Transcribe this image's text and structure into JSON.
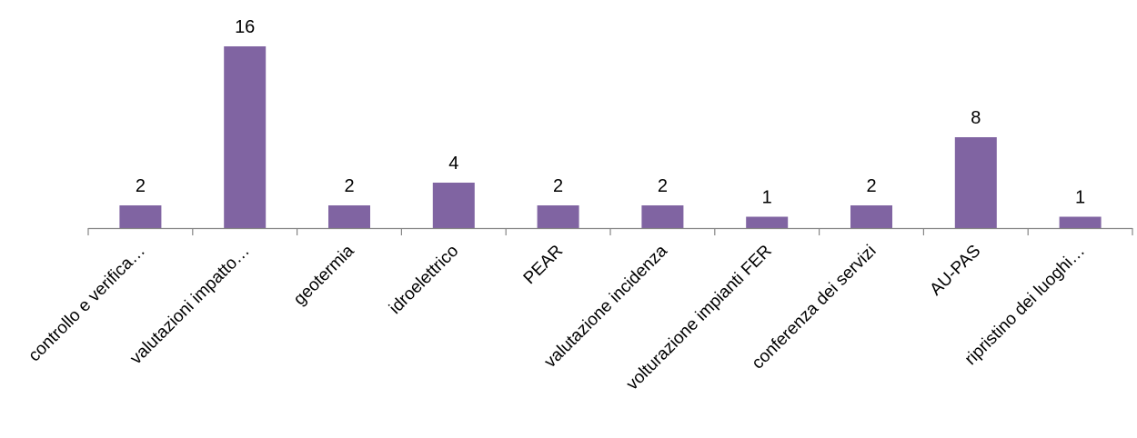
{
  "chart_data": {
    "type": "bar",
    "categories": [
      "controllo e verifica…",
      "valutazioni impatto…",
      "geotermia",
      "idroelettrico",
      "PEAR",
      "valutazione incidenza",
      "volturazione impianti FER",
      "conferenza dei servizi",
      "AU-PAS",
      "ripristino dei luoghi…"
    ],
    "values": [
      2,
      16,
      2,
      4,
      2,
      2,
      1,
      2,
      8,
      1
    ],
    "ylim": [
      0,
      16
    ],
    "grid": false,
    "legend": "none",
    "colors": {
      "bar": "#8064A2",
      "axis": "#868686"
    }
  }
}
